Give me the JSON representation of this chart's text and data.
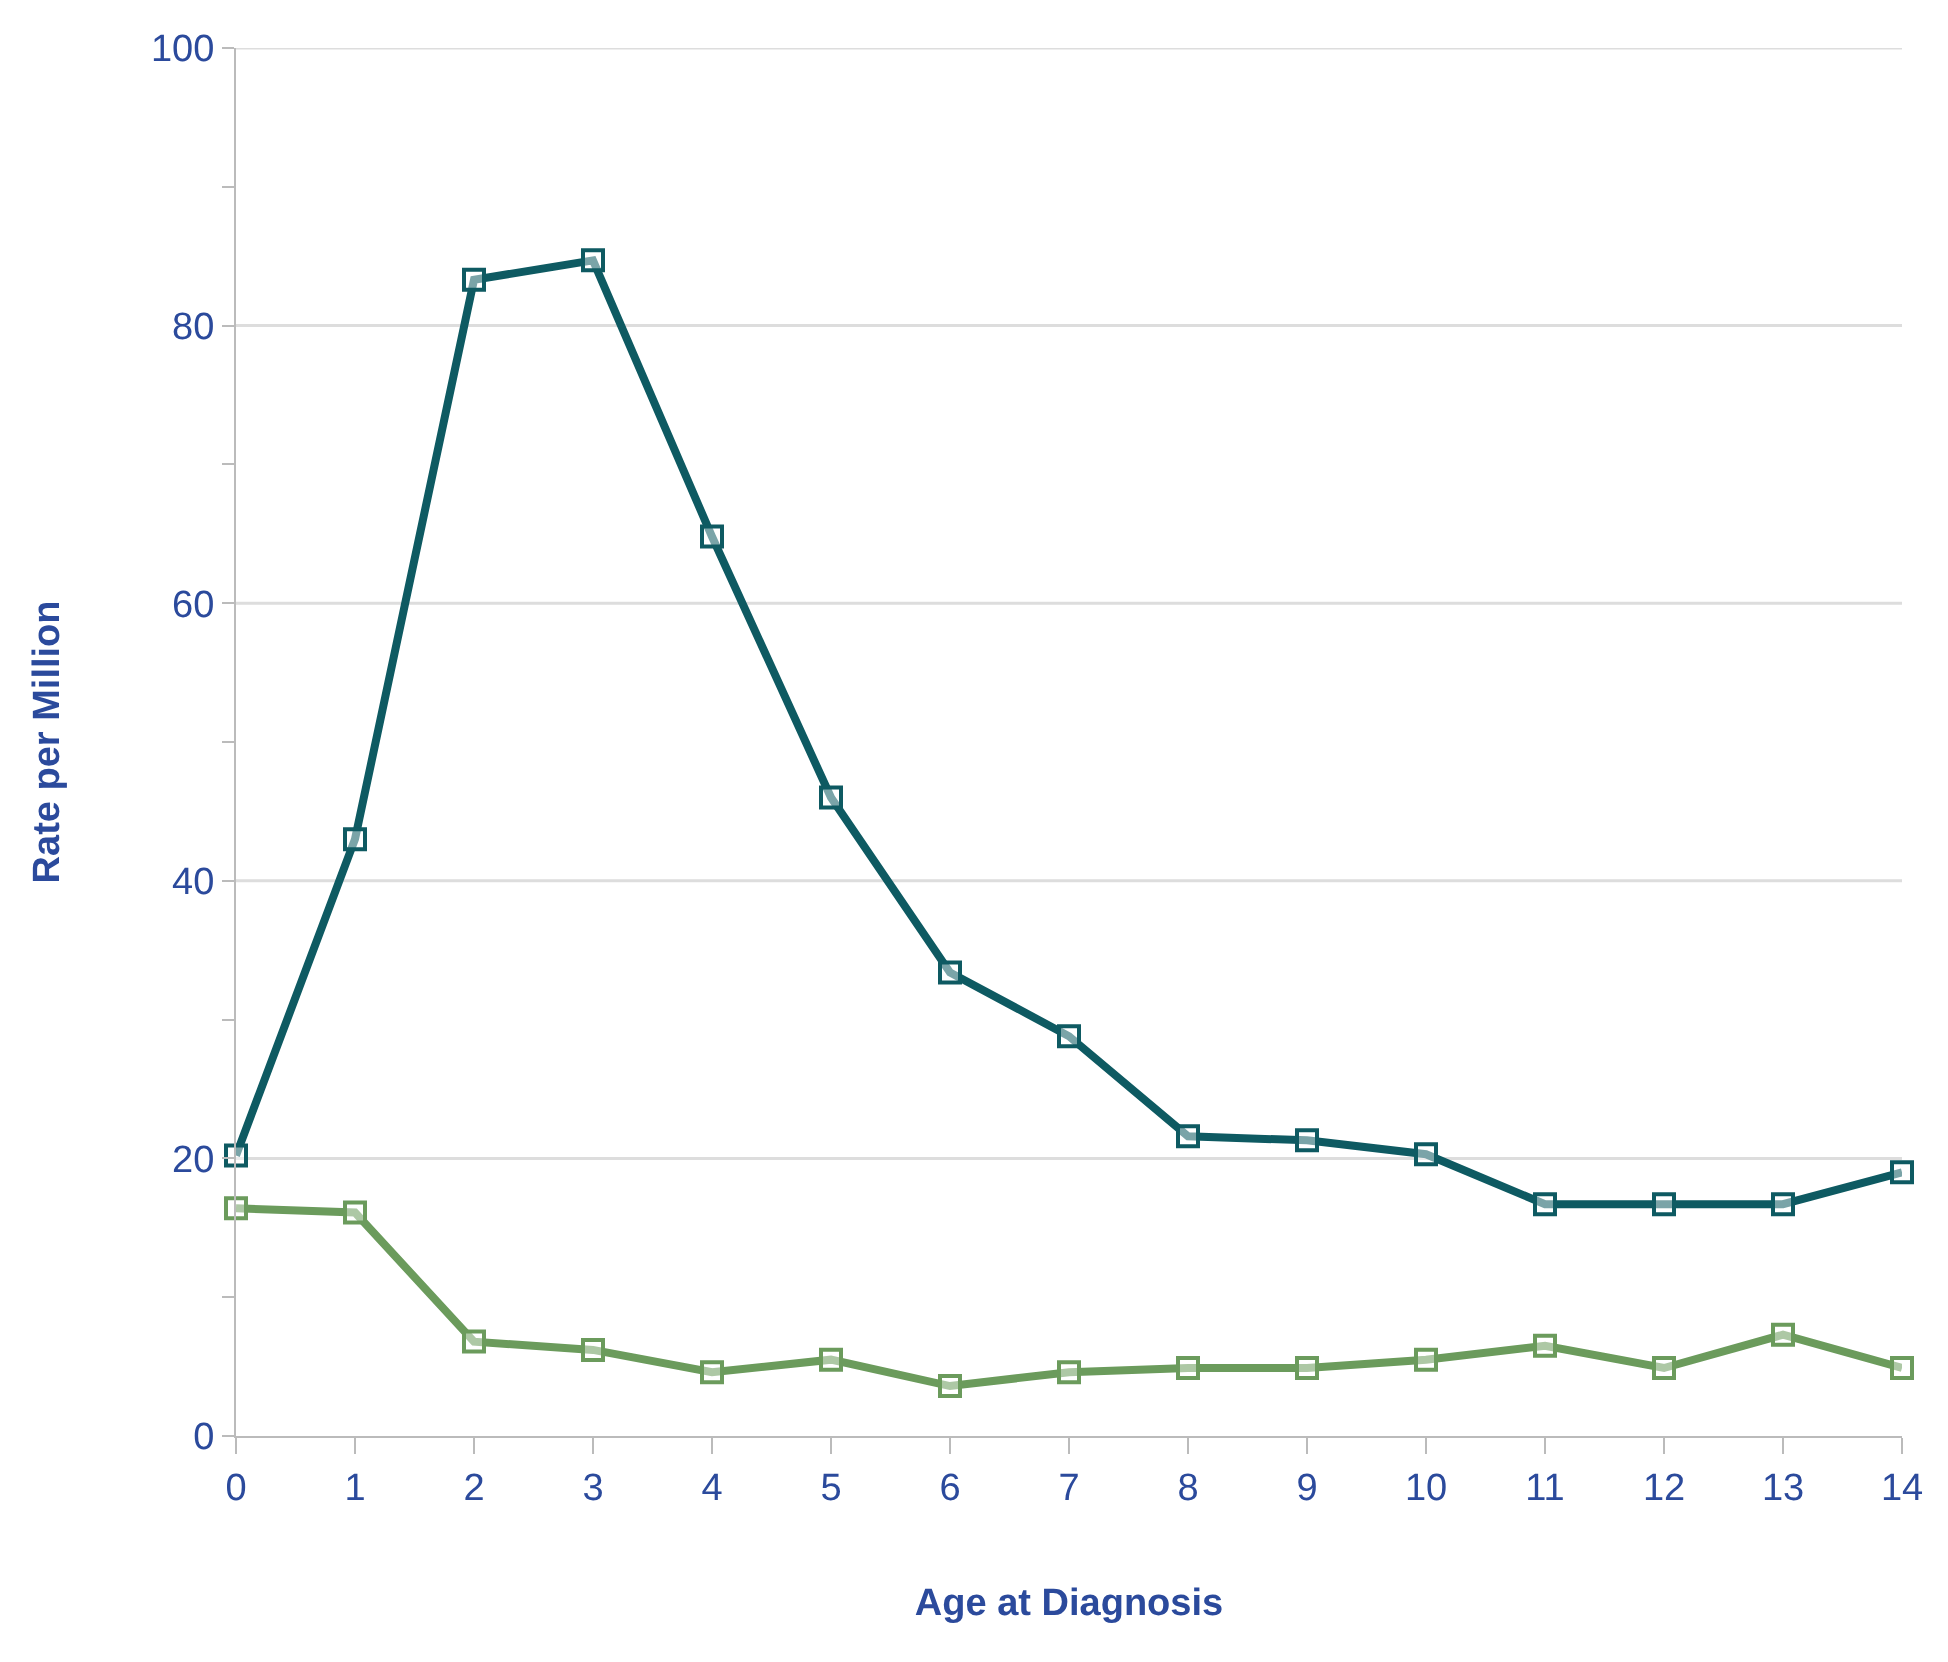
{
  "chart_data": {
    "type": "line",
    "xlabel": "Age at Diagnosis",
    "ylabel": "Rate per Million",
    "x": [
      0,
      1,
      2,
      3,
      4,
      5,
      6,
      7,
      8,
      9,
      10,
      11,
      12,
      13,
      14
    ],
    "series": [
      {
        "color": "#0e5a62",
        "values": [
          20.2,
          43,
          83.3,
          84.7,
          64.8,
          46,
          33.4,
          28.8,
          21.6,
          21.3,
          20.3,
          16.7,
          16.7,
          16.7,
          19
        ]
      },
      {
        "color": "#6b9b5c",
        "values": [
          16.4,
          16.1,
          6.8,
          6.2,
          4.6,
          5.5,
          3.6,
          4.6,
          4.9,
          4.9,
          5.5,
          6.5,
          4.9,
          7.3,
          4.9
        ]
      }
    ],
    "xlim": [
      0,
      14
    ],
    "xticks": [
      0,
      1,
      2,
      3,
      4,
      5,
      6,
      7,
      8,
      9,
      10,
      11,
      12,
      13,
      14
    ],
    "ylim": [
      0,
      100
    ],
    "yticks": [
      0,
      {
        "value": 10,
        "label": null
      },
      20,
      {
        "value": 30,
        "label": null
      },
      40,
      {
        "value": 50,
        "label": null
      },
      60,
      {
        "value": 70,
        "label": null
      },
      80,
      {
        "value": 90,
        "label": null
      },
      100
    ],
    "grid": "y",
    "marker": "square",
    "line_style": "solid",
    "legend": false
  }
}
